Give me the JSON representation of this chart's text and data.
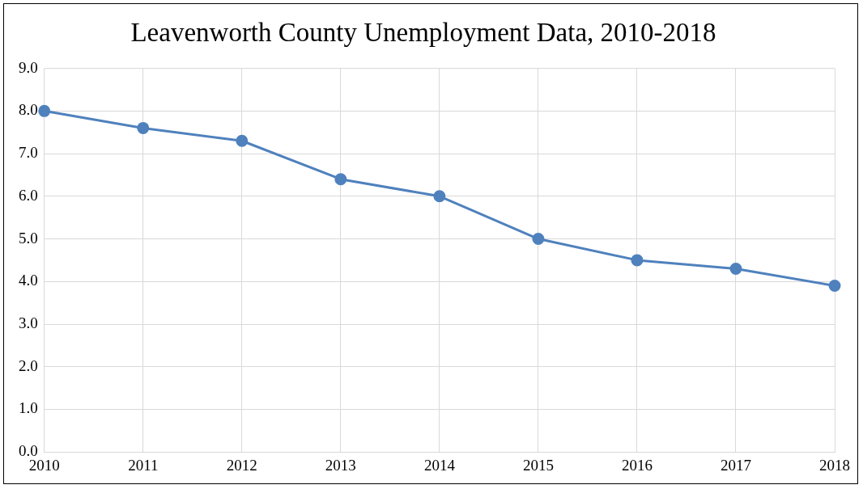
{
  "chart_data": {
    "type": "line",
    "title": "Leavenworth County Unemployment Data, 2010-2018",
    "categories": [
      "2010",
      "2011",
      "2012",
      "2013",
      "2014",
      "2015",
      "2016",
      "2017",
      "2018"
    ],
    "values": [
      8.0,
      7.6,
      7.3,
      6.4,
      6.0,
      5.0,
      4.5,
      4.3,
      3.9
    ],
    "color": "#4f81bd",
    "ylim": [
      0,
      9
    ],
    "yticks": [
      {
        "value": 0,
        "label": "0.0"
      },
      {
        "value": 1,
        "label": "1.0"
      },
      {
        "value": 2,
        "label": "2.0"
      },
      {
        "value": 3,
        "label": "3.0"
      },
      {
        "value": 4,
        "label": "4.0"
      },
      {
        "value": 5,
        "label": "5.0"
      },
      {
        "value": 6,
        "label": "6.0"
      },
      {
        "value": 7,
        "label": "7.0"
      },
      {
        "value": 8,
        "label": "8.0"
      },
      {
        "value": 9,
        "label": "9.0"
      }
    ],
    "grid": true,
    "marker": "circle",
    "line_style": "solid",
    "legend": false
  }
}
